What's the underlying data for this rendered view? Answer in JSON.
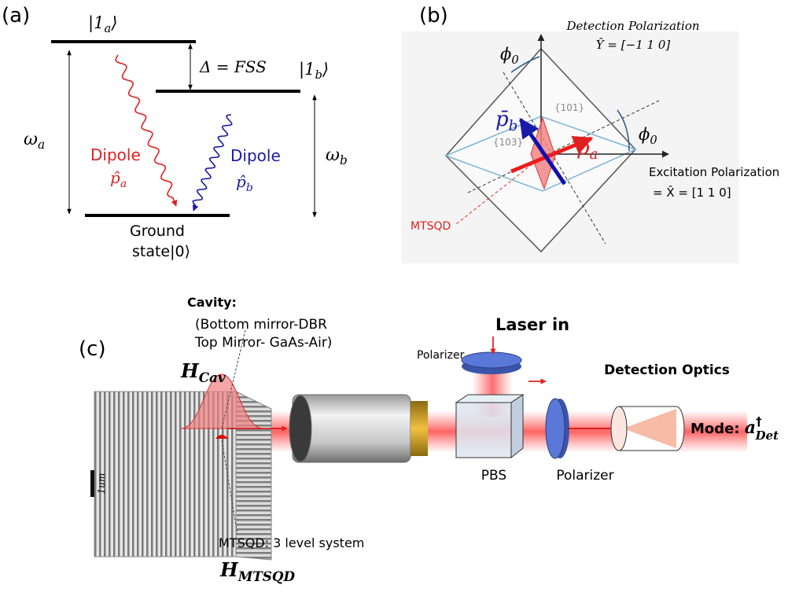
{
  "panel_a": {
    "label": "(a)",
    "excited_a": {
      "base": "|1",
      "sub": "a",
      "end": "⟩"
    },
    "splitting": "Δ = FSS",
    "excited_b": {
      "base": "|1",
      "sub": "b",
      "end": "⟩"
    },
    "omega_a": {
      "base": "ω",
      "sub": "a"
    },
    "omega_b": {
      "base": "ω",
      "sub": "b"
    },
    "dipole_a": {
      "label": "Dipole",
      "base": "p̂",
      "sub": "a"
    },
    "dipole_b": {
      "label": "Dipole",
      "base": "p̂",
      "sub": "b"
    },
    "ground": [
      "Ground",
      "state|0⟩"
    ]
  },
  "panel_b": {
    "label": "(b)",
    "detection": {
      "title": "Detection Polarization",
      "axis": "Ŷ = [−1 1 0]"
    },
    "excitation": {
      "title": "Excitation Polarization",
      "axis": "= X̂ = [1 1 0]"
    },
    "angles": [
      {
        "base": "ϕ",
        "sub": "0"
      },
      {
        "base": "ϕ",
        "sub": "0"
      }
    ],
    "facets": [
      "{101}",
      "{103}"
    ],
    "dipole_a": {
      "base": "p̄",
      "sub": "a"
    },
    "dipole_b": {
      "base": "p̄",
      "sub": "b"
    },
    "dot": "MTSQD"
  },
  "panel_c": {
    "label": "(c)",
    "cavity": {
      "title": "Cavity:",
      "lines": [
        "(Bottom mirror-DBR",
        "Top Mirror- GaAs-Air)"
      ],
      "hamiltonian": {
        "base": "H",
        "sub": "Cav"
      }
    },
    "laser": "Laser in",
    "polarizer_in": "Polarizer",
    "pbs": "PBS",
    "polarizer_out": "Polarizer",
    "detection": "Detection Optics",
    "mode": {
      "prefix": "Mode: ",
      "base": "a",
      "sup": "†",
      "sub": "Det"
    },
    "scale_bar": "1um",
    "dot": {
      "description": "MTSQD: 3 level system",
      "hamiltonian": {
        "base": "H",
        "sub": "MTSQD"
      }
    }
  }
}
